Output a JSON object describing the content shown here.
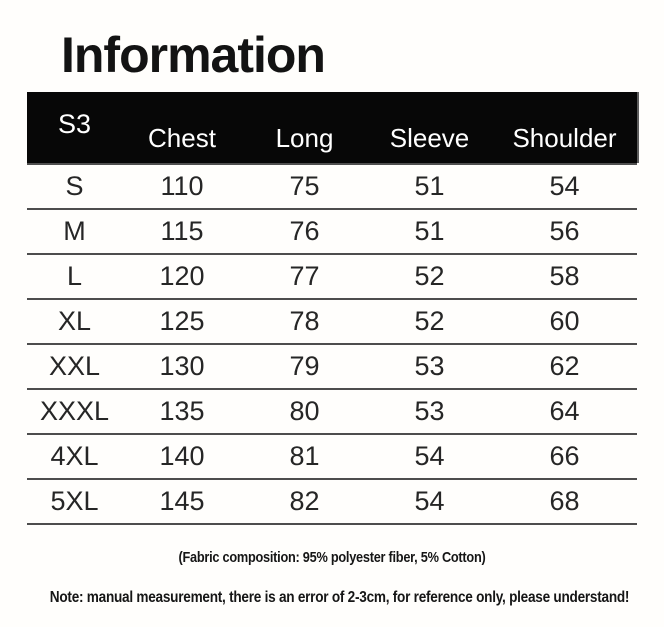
{
  "page": {
    "title": "Information"
  },
  "size_chart": {
    "corner_label": "S3",
    "columns": [
      "Chest",
      "Long",
      "Sleeve",
      "Shoulder"
    ],
    "rows": [
      {
        "size": "S",
        "chest": "110",
        "long": "75",
        "sleeve": "51",
        "shoulder": "54"
      },
      {
        "size": "M",
        "chest": "115",
        "long": "76",
        "sleeve": "51",
        "shoulder": "56"
      },
      {
        "size": "L",
        "chest": "120",
        "long": "77",
        "sleeve": "52",
        "shoulder": "58"
      },
      {
        "size": "XL",
        "chest": "125",
        "long": "78",
        "sleeve": "52",
        "shoulder": "60"
      },
      {
        "size": "XXL",
        "chest": "130",
        "long": "79",
        "sleeve": "53",
        "shoulder": "62"
      },
      {
        "size": "XXXL",
        "chest": "135",
        "long": "80",
        "sleeve": "53",
        "shoulder": "64"
      },
      {
        "size": "4XL",
        "chest": "140",
        "long": "81",
        "sleeve": "54",
        "shoulder": "66"
      },
      {
        "size": "5XL",
        "chest": "145",
        "long": "82",
        "sleeve": "54",
        "shoulder": "68"
      }
    ]
  },
  "footnotes": {
    "fabric": "(Fabric composition: 95% polyester fiber, 5% Cotton)",
    "note": "Note: manual measurement, there is an error of 2-3cm, for reference only, please understand!"
  },
  "colors": {
    "header_bg": "#070707",
    "header_text": "#ffffff",
    "body_text": "#262626",
    "divider": "#4d4d4d",
    "background": "#fffefc"
  }
}
